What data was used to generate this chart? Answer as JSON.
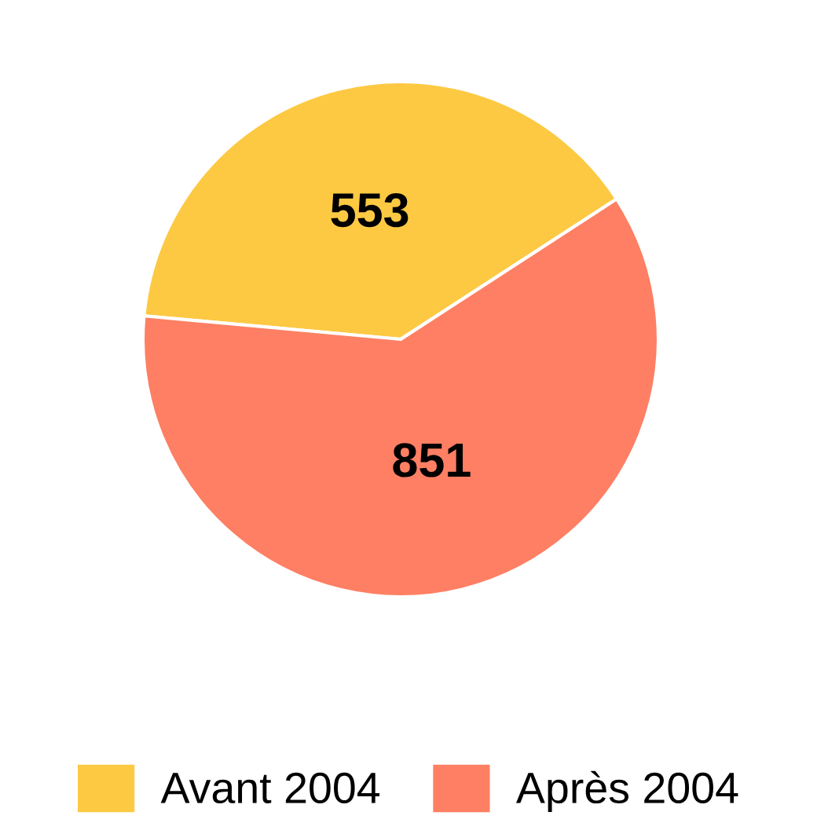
{
  "chart_data": {
    "type": "pie",
    "categories": [
      "Avant 2004",
      "Après 2004"
    ],
    "values": [
      553,
      851
    ],
    "colors": [
      "#fdc943",
      "#fe7f63"
    ],
    "data_labels": true,
    "legend": "bottom"
  }
}
